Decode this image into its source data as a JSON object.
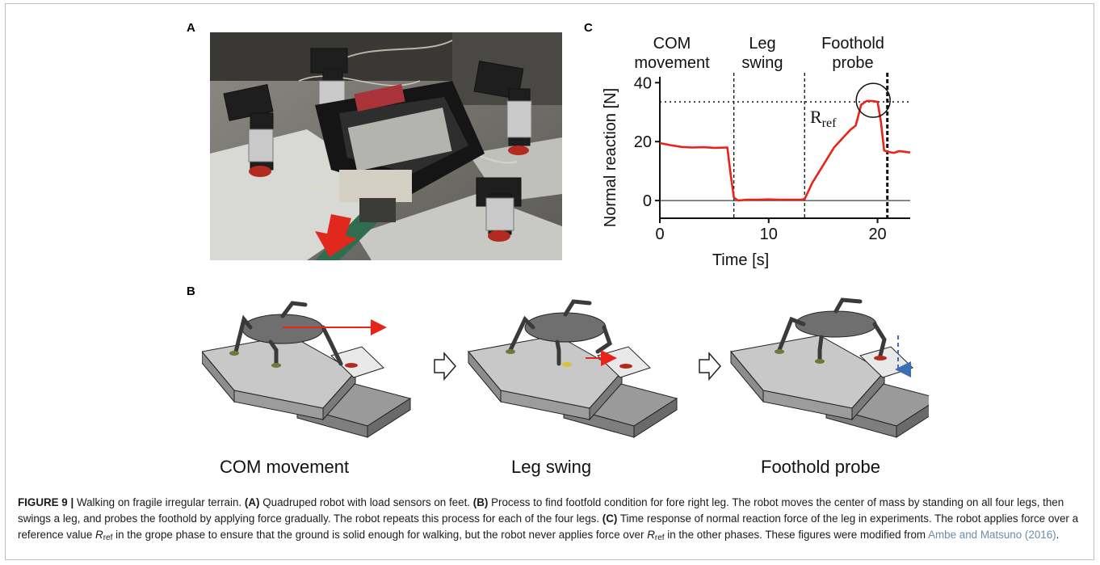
{
  "panels": {
    "a_label": "A",
    "b_label": "B",
    "c_label": "C"
  },
  "photo": {
    "subject": "quadruped robot with load sensors on feet",
    "arrow_color": "#e0281e"
  },
  "chart_data": {
    "type": "line",
    "title": "",
    "xlabel": "Time [s]",
    "ylabel": "Normal reaction [N]",
    "xlim": [
      0,
      23
    ],
    "ylim": [
      -6,
      42
    ],
    "xticks": [
      0,
      10,
      20
    ],
    "yticks": [
      0,
      20,
      40
    ],
    "phase_labels": [
      {
        "line1": "COM",
        "line2": "movement"
      },
      {
        "line1": "Leg",
        "line2": "swing"
      },
      {
        "line1": "Foothold",
        "line2": "probe"
      }
    ],
    "phase_boundaries": [
      6.8,
      13.3,
      20.9
    ],
    "reference": {
      "label": "R",
      "subscript": "ref",
      "value": 33.5
    },
    "series": [
      {
        "color": "#e8231a",
        "x": [
          0,
          1,
          2,
          3,
          4,
          5,
          6.2,
          6.5,
          6.8,
          7.2,
          8,
          9,
          10,
          11,
          12,
          13,
          13.3,
          14,
          15,
          16,
          17,
          17.5,
          18,
          18.5,
          19,
          19.5,
          20,
          20.3,
          20.6,
          21,
          21.5,
          22,
          23
        ],
        "y": [
          19.5,
          18.8,
          18.2,
          18.0,
          18.1,
          17.9,
          18.0,
          9,
          1,
          0,
          0.3,
          0.3,
          0.4,
          0.3,
          0.3,
          0.3,
          0.5,
          6,
          12,
          18,
          22,
          24,
          25.5,
          32.5,
          33.8,
          33.8,
          33.5,
          27,
          17,
          16.5,
          16.2,
          16.8,
          16.3
        ]
      }
    ]
  },
  "schematic": {
    "stages": [
      "COM movement",
      "Leg swing",
      "Foothold probe"
    ],
    "arrow_colors": {
      "com": "#e8231a",
      "probe": "#3a6fb5"
    }
  },
  "caption": {
    "figure_label": "FIGURE 9 |",
    "title": "Walking on fragile irregular terrain.",
    "a_tag": "(A)",
    "a_text": "Quadruped robot with load sensors on feet.",
    "b_tag": "(B)",
    "b_text": "Process to find footfold condition for fore right leg. The robot moves the center of mass by standing on all four legs, then swings a leg, and probes the foothold by applying force gradually. The robot repeats this process for each of the four legs.",
    "c_tag": "(C)",
    "c_text1": "Time response of normal reaction force of the leg in experiments. The robot applies force over a reference value",
    "c_text2": "in the grope phase to ensure that the ground is solid enough for walking, but the robot never applies force over",
    "c_text3": "in the other phases. These figures were modified from",
    "r_symbol": "R",
    "r_sub": "ref",
    "ref_link": "Ambe and Matsuno (2016)",
    "end": "."
  }
}
